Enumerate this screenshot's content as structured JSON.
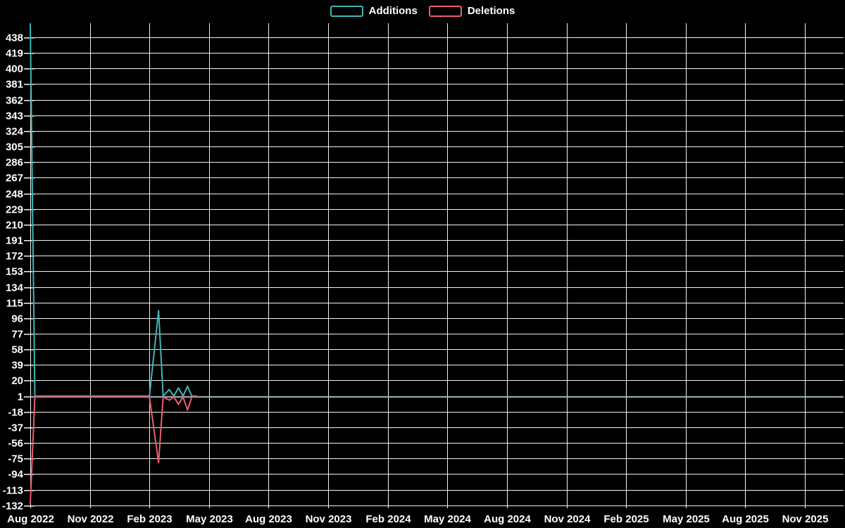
{
  "page": {
    "background_color": "#000000",
    "text_color": "#ffffff"
  },
  "chart_data": {
    "type": "line",
    "title": "",
    "legend": {
      "position": "top-center",
      "labels": [
        "Additions",
        "Deletions"
      ]
    },
    "x_axis": {
      "type": "time",
      "tick_labels": [
        "Aug 2022",
        "Nov 2022",
        "Feb 2023",
        "May 2023",
        "Aug 2023",
        "Nov 2023",
        "Feb 2024",
        "May 2024",
        "Aug 2024",
        "Nov 2024",
        "Feb 2025",
        "May 2025",
        "Aug 2025",
        "Nov 2025"
      ],
      "tick_interval_months": 3
    },
    "y_axis": {
      "tick_labels": [
        438,
        419,
        400,
        381,
        362,
        343,
        324,
        305,
        286,
        267,
        248,
        229,
        210,
        191,
        172,
        153,
        134,
        115,
        96,
        77,
        58,
        39,
        20,
        1,
        -18,
        -37,
        -56,
        -75,
        -94,
        -113,
        -132
      ],
      "max_tick": 438,
      "min_tick": -132,
      "interval": 19
    },
    "grid": {
      "show": true,
      "color": "#f2f2f2",
      "zero_line_value": 0,
      "zero_line_color": "#a6bcc1"
    },
    "series": [
      {
        "name": "Additions",
        "color": "#3cb7b7",
        "points": [
          [
            "2022-08-01",
            454
          ],
          [
            "2022-08-08",
            1
          ],
          [
            "2023-02-01",
            1
          ],
          [
            "2023-02-15",
            105
          ],
          [
            "2023-02-22",
            1
          ],
          [
            "2023-03-01",
            9
          ],
          [
            "2023-03-08",
            1
          ],
          [
            "2023-03-15",
            11
          ],
          [
            "2023-03-22",
            1
          ],
          [
            "2023-03-29",
            13
          ],
          [
            "2023-04-05",
            1
          ],
          [
            "2023-04-12",
            1
          ]
        ]
      },
      {
        "name": "Deletions",
        "color": "#ec5c72",
        "points": [
          [
            "2022-08-01",
            -130
          ],
          [
            "2022-08-08",
            0
          ],
          [
            "2023-02-01",
            0
          ],
          [
            "2023-02-15",
            -80
          ],
          [
            "2023-02-22",
            0
          ],
          [
            "2023-03-01",
            -4
          ],
          [
            "2023-03-08",
            0
          ],
          [
            "2023-03-15",
            -9
          ],
          [
            "2023-03-22",
            0
          ],
          [
            "2023-03-29",
            -16
          ],
          [
            "2023-04-05",
            0
          ],
          [
            "2023-04-12",
            0
          ]
        ]
      }
    ]
  }
}
